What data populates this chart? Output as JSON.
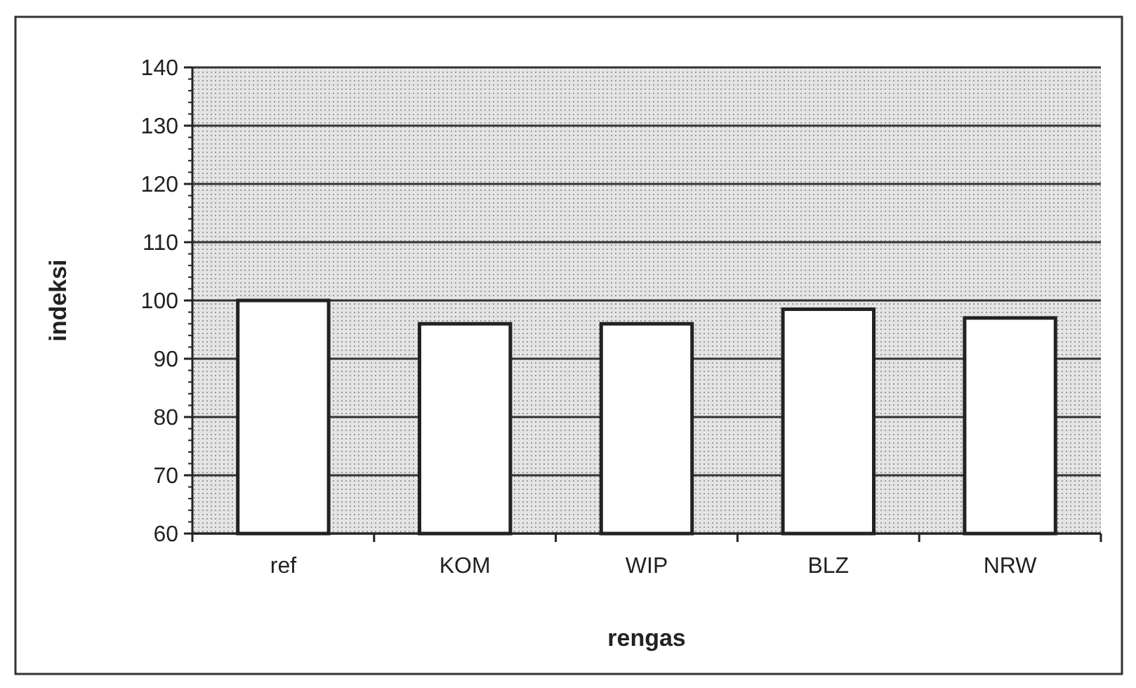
{
  "chart_data": {
    "type": "bar",
    "xlabel": "rengas",
    "ylabel": "indeksi",
    "categories": [
      "ref",
      "KOM",
      "WIP",
      "BLZ",
      "NRW"
    ],
    "values": [
      100,
      96,
      96,
      98.5,
      97
    ],
    "color": "#ffffff",
    "ylim": [
      60,
      140
    ],
    "yticks": [
      60,
      70,
      80,
      90,
      100,
      110,
      120,
      130,
      140
    ],
    "grid": "y"
  }
}
